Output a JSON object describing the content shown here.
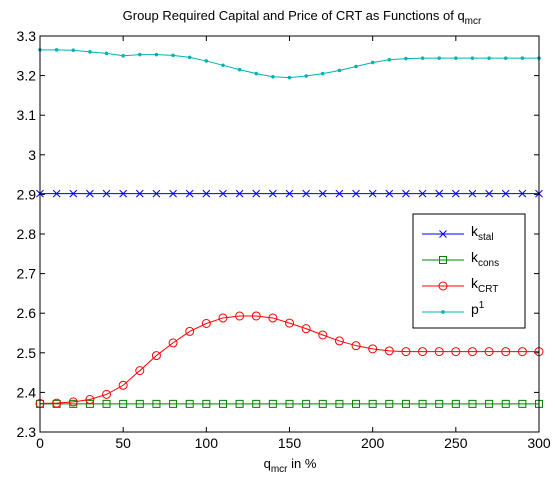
{
  "chart_data": {
    "type": "line",
    "title": "Group Required Capital and Price of CRT as Functions of q",
    "title_sub": "mcr",
    "xlabel_main": "q",
    "xlabel_sub": "mcr",
    "xlabel_tail": " in %",
    "xlim": [
      0,
      300
    ],
    "ylim": [
      2.3,
      3.3
    ],
    "xticks": [
      0,
      50,
      100,
      150,
      200,
      250,
      300
    ],
    "yticks": [
      2.3,
      2.4,
      2.5,
      2.6,
      2.7,
      2.8,
      2.9,
      3,
      3.1,
      3.2,
      3.3
    ],
    "ytick_labels": [
      "2.3",
      "2.4",
      "2.5",
      "2.6",
      "2.7",
      "2.8",
      "2.9",
      "3",
      "3.1",
      "3.2",
      "3.3"
    ],
    "grid": false,
    "legend_position": "right",
    "x": [
      0,
      10,
      20,
      30,
      40,
      50,
      60,
      70,
      80,
      90,
      100,
      110,
      120,
      130,
      140,
      150,
      160,
      170,
      180,
      190,
      200,
      210,
      220,
      230,
      240,
      250,
      260,
      270,
      280,
      290,
      300
    ],
    "series": [
      {
        "name": "k",
        "name_sub": "stal",
        "color": "#0000ff",
        "marker": "x",
        "values": [
          2.902,
          2.902,
          2.902,
          2.902,
          2.902,
          2.902,
          2.902,
          2.902,
          2.902,
          2.902,
          2.902,
          2.902,
          2.902,
          2.902,
          2.902,
          2.902,
          2.902,
          2.902,
          2.902,
          2.902,
          2.902,
          2.902,
          2.902,
          2.902,
          2.902,
          2.902,
          2.902,
          2.902,
          2.902,
          2.902,
          2.902
        ]
      },
      {
        "name": "k",
        "name_sub": "cons",
        "color": "#008000",
        "marker": "square",
        "values": [
          2.371,
          2.371,
          2.371,
          2.371,
          2.371,
          2.371,
          2.371,
          2.371,
          2.371,
          2.371,
          2.371,
          2.371,
          2.371,
          2.371,
          2.371,
          2.371,
          2.371,
          2.371,
          2.371,
          2.371,
          2.371,
          2.371,
          2.371,
          2.371,
          2.371,
          2.371,
          2.371,
          2.371,
          2.371,
          2.371,
          2.371
        ]
      },
      {
        "name": "k",
        "name_sub": "CRT",
        "color": "#ff0000",
        "marker": "circle",
        "values": [
          2.372,
          2.373,
          2.376,
          2.382,
          2.395,
          2.418,
          2.455,
          2.493,
          2.525,
          2.554,
          2.574,
          2.588,
          2.593,
          2.593,
          2.588,
          2.575,
          2.561,
          2.545,
          2.53,
          2.518,
          2.51,
          2.505,
          2.503,
          2.503,
          2.503,
          2.503,
          2.503,
          2.503,
          2.503,
          2.503,
          2.503
        ]
      },
      {
        "name": "p",
        "name_sup": "1",
        "color": "#00b3b3",
        "marker": "dot",
        "values": [
          3.265,
          3.265,
          3.264,
          3.26,
          3.256,
          3.25,
          3.253,
          3.253,
          3.251,
          3.246,
          3.237,
          3.226,
          3.215,
          3.205,
          3.197,
          3.195,
          3.199,
          3.205,
          3.213,
          3.223,
          3.233,
          3.24,
          3.243,
          3.244,
          3.244,
          3.244,
          3.244,
          3.244,
          3.244,
          3.244,
          3.244
        ]
      }
    ]
  }
}
